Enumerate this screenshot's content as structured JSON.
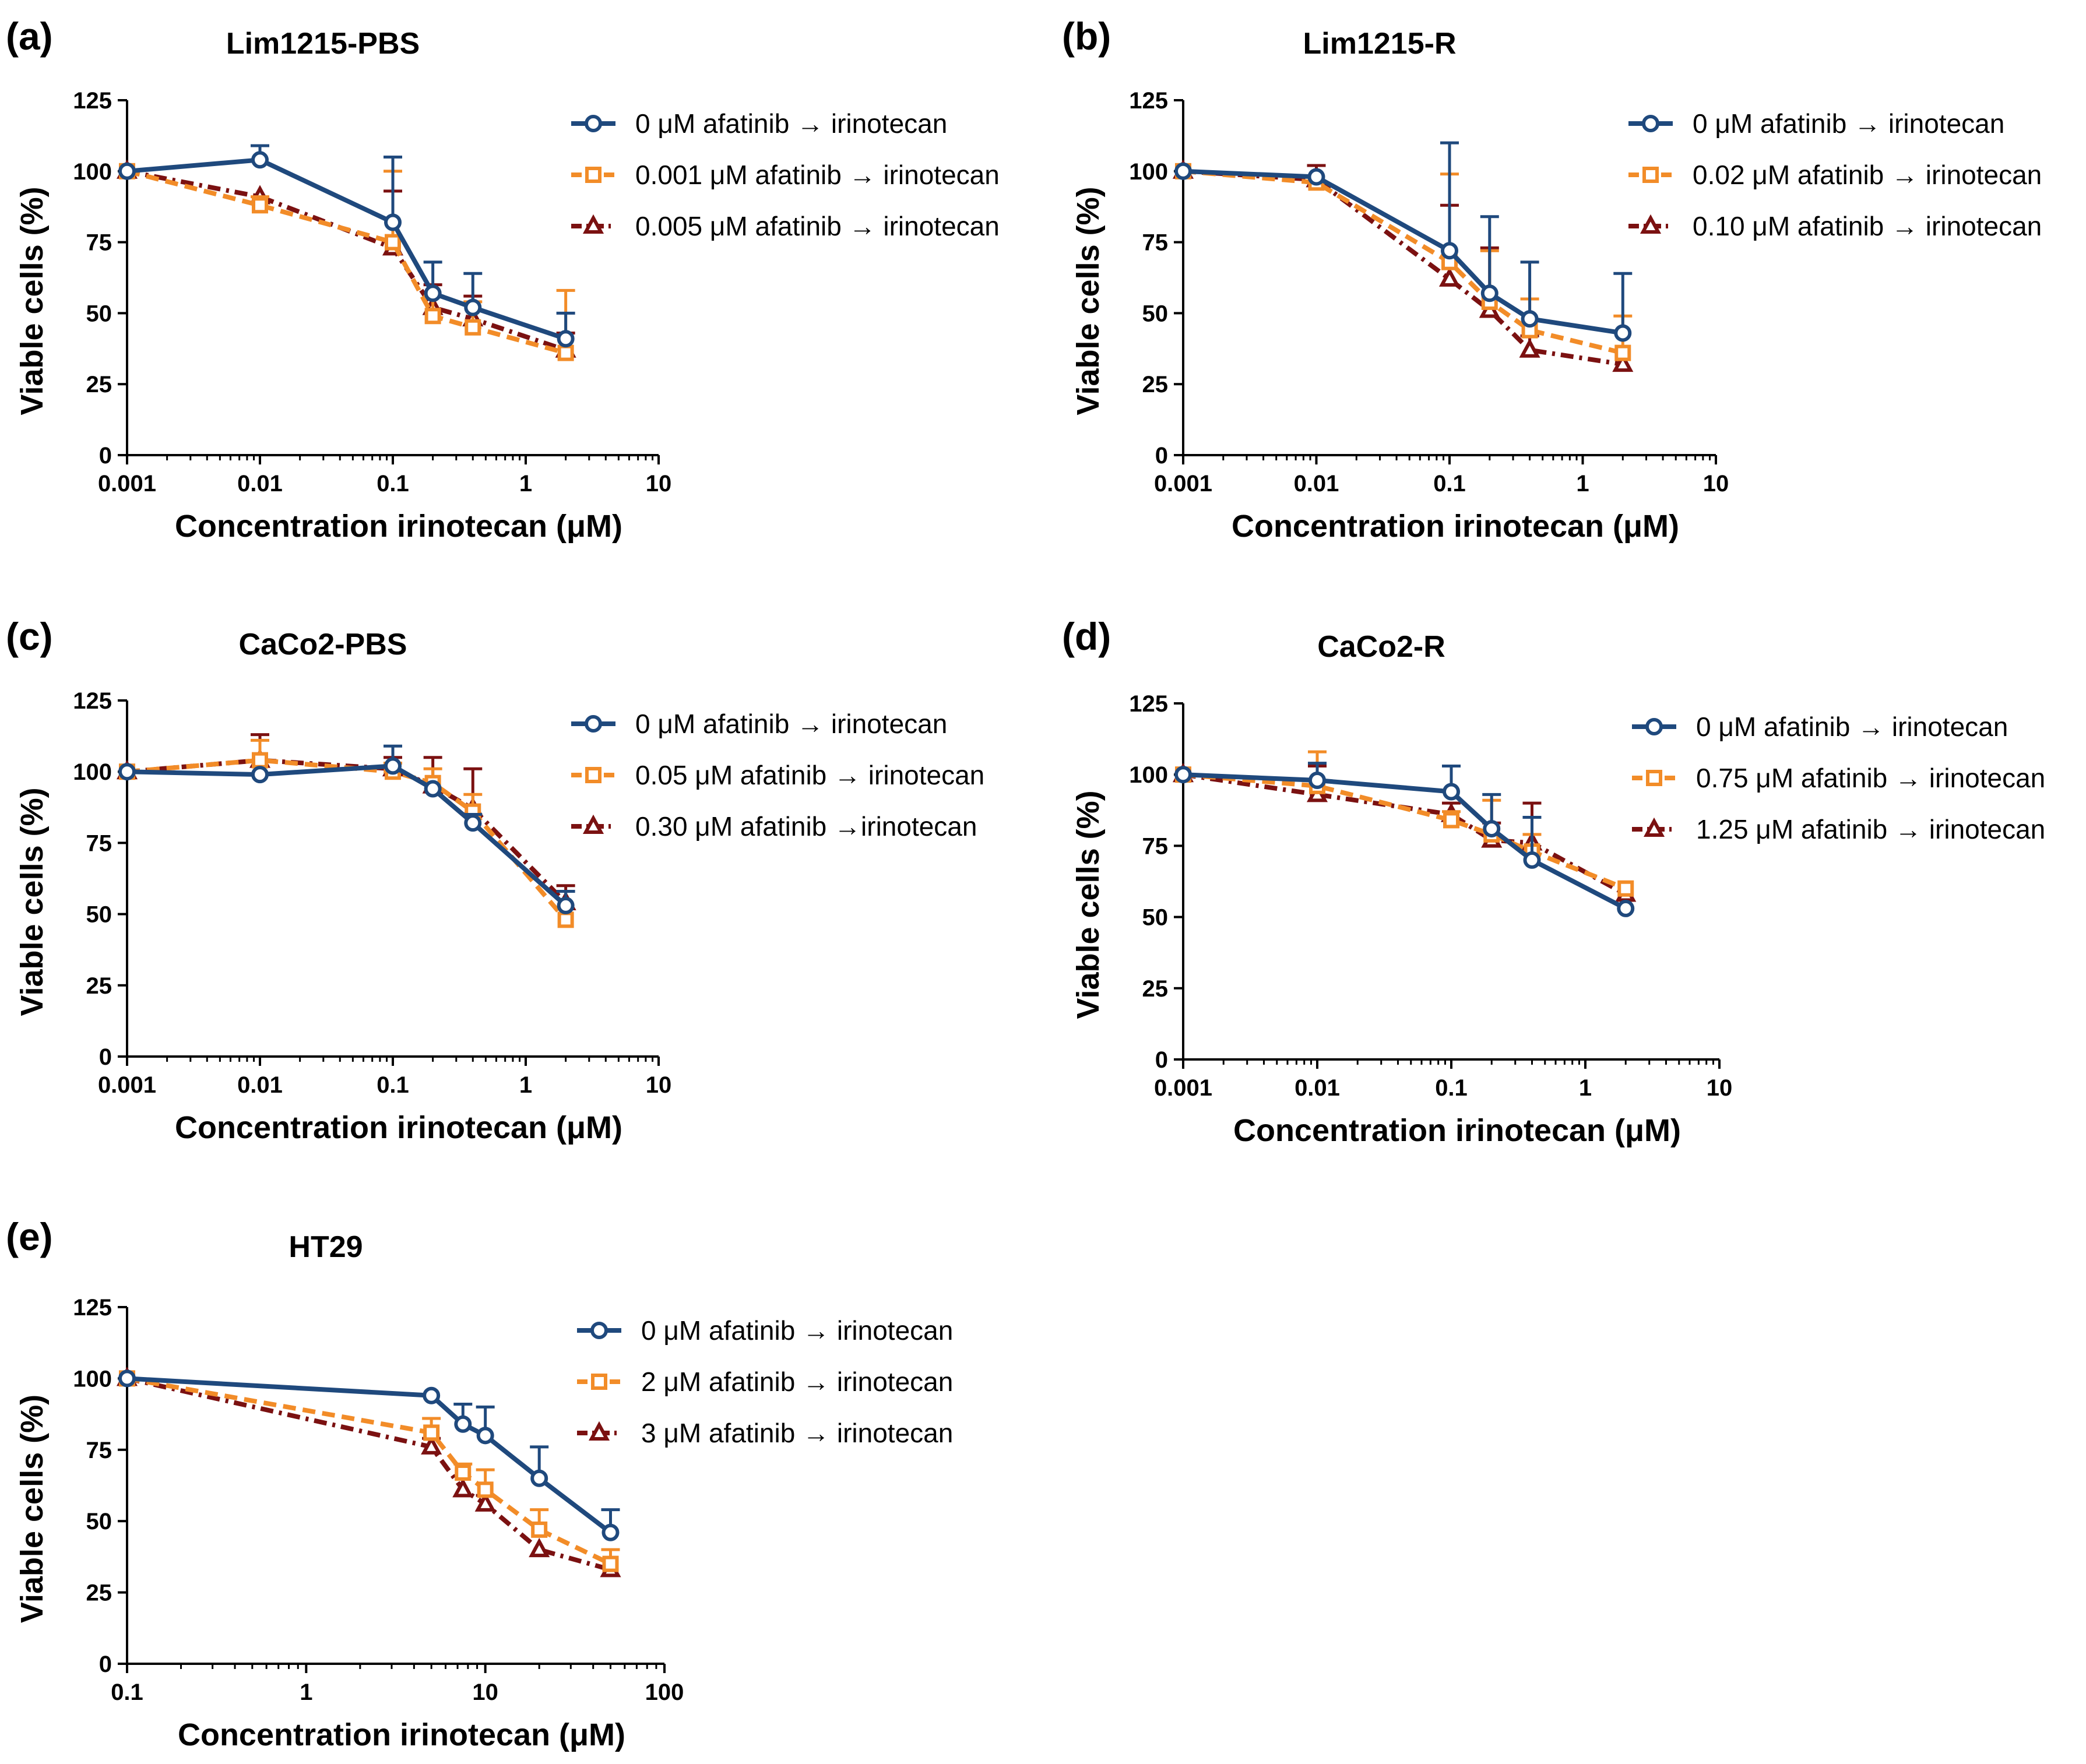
{
  "figure": {
    "background": "#ffffff"
  },
  "series_styles": [
    {
      "color": "#1f497d",
      "marker": "circle",
      "dash": "solid"
    },
    {
      "color": "#f28c28",
      "marker": "square",
      "dash": "dashed"
    },
    {
      "color": "#7b1111",
      "marker": "triangle",
      "dash": "dashdot"
    }
  ],
  "chart_data": [
    {
      "type": "line",
      "panel_label": "(a)",
      "title": "Lim1215-PBS",
      "xlabel": "Concentration irinotecan (μM)",
      "ylabel": "Viable cells (%)",
      "xscale": "log",
      "xlim": [
        0.001,
        10
      ],
      "ylim": [
        0,
        125
      ],
      "xticks": [
        0.001,
        0.01,
        0.1,
        1,
        10
      ],
      "xtick_labels": [
        "0.001",
        "0.01",
        "0.1",
        "1",
        "10"
      ],
      "yticks": [
        0,
        25,
        50,
        75,
        100,
        125
      ],
      "ytick_labels": [
        "0",
        "25",
        "50",
        "75",
        "100",
        "125"
      ],
      "legend_position": "top-right",
      "x": [
        0.001,
        0.01,
        0.1,
        0.2,
        0.4,
        2
      ],
      "series": [
        {
          "name": "0 μM afatinib → irinotecan",
          "values": [
            100,
            104,
            82,
            57,
            52,
            41
          ],
          "errors": [
            1,
            5,
            23,
            11,
            12,
            9
          ]
        },
        {
          "name": "0.001 μM afatinib → irinotecan",
          "values": [
            100,
            88,
            75,
            49,
            45,
            36
          ],
          "errors": [
            1,
            3,
            25,
            7,
            9,
            22
          ]
        },
        {
          "name": "0.005 μM afatinib → irinotecan",
          "values": [
            100,
            91,
            73,
            52,
            48,
            37
          ],
          "errors": [
            1,
            2,
            20,
            8,
            8,
            6
          ]
        }
      ]
    },
    {
      "type": "line",
      "panel_label": "(b)",
      "title": "Lim1215-R",
      "xlabel": "Concentration irinotecan (μM)",
      "ylabel": "Viable cells (%)",
      "xscale": "log",
      "xlim": [
        0.001,
        10
      ],
      "ylim": [
        0,
        125
      ],
      "xticks": [
        0.001,
        0.01,
        0.1,
        1,
        10
      ],
      "xtick_labels": [
        "0.001",
        "0.01",
        "0.1",
        "1",
        "10"
      ],
      "yticks": [
        0,
        25,
        50,
        75,
        100,
        125
      ],
      "ytick_labels": [
        "0",
        "25",
        "50",
        "75",
        "100",
        "125"
      ],
      "legend_position": "top-right",
      "x": [
        0.001,
        0.01,
        0.1,
        0.2,
        0.4,
        2
      ],
      "series": [
        {
          "name": "0 μM afatinib → irinotecan",
          "values": [
            100,
            98,
            72,
            57,
            48,
            43
          ],
          "errors": [
            1,
            2,
            38,
            27,
            20,
            21
          ]
        },
        {
          "name": "0.02 μM afatinib → irinotecan",
          "values": [
            100,
            96,
            68,
            54,
            44,
            36
          ],
          "errors": [
            1,
            2,
            31,
            18,
            11,
            13
          ]
        },
        {
          "name": "0.10 μM afatinib → irinotecan",
          "values": [
            100,
            97,
            62,
            51,
            37,
            32
          ],
          "errors": [
            1,
            5,
            26,
            22,
            5,
            2
          ]
        }
      ]
    },
    {
      "type": "line",
      "panel_label": "(c)",
      "title": "CaCo2-PBS",
      "xlabel": "Concentration irinotecan (μM)",
      "ylabel": "Viable cells (%)",
      "xscale": "log",
      "xlim": [
        0.001,
        10
      ],
      "ylim": [
        0,
        125
      ],
      "xticks": [
        0.001,
        0.01,
        0.1,
        1,
        10
      ],
      "xtick_labels": [
        "0.001",
        "0.01",
        "0.1",
        "1",
        "10"
      ],
      "yticks": [
        0,
        25,
        50,
        75,
        100,
        125
      ],
      "ytick_labels": [
        "0",
        "25",
        "50",
        "75",
        "100",
        "125"
      ],
      "legend_position": "top-right",
      "x": [
        0.001,
        0.01,
        0.1,
        0.2,
        0.4,
        2
      ],
      "series": [
        {
          "name": "0 μM afatinib → irinotecan",
          "values": [
            100,
            99,
            102,
            94,
            82,
            53
          ],
          "errors": [
            1,
            1,
            7,
            2,
            3,
            5
          ]
        },
        {
          "name": "0.05 μM afatinib → irinotecan",
          "values": [
            100,
            104,
            100,
            96,
            86,
            48
          ],
          "errors": [
            1,
            7,
            3,
            5,
            6,
            2
          ]
        },
        {
          "name": "0.30 μM afatinib →​irinotecan",
          "values": [
            100,
            104,
            101,
            95,
            87,
            54
          ],
          "errors": [
            1,
            9,
            4,
            10,
            14,
            6
          ]
        }
      ]
    },
    {
      "type": "line",
      "panel_label": "(d)",
      "title": "CaCo2-R",
      "xlabel": "Concentration irinotecan (μM)",
      "ylabel": "Viable cells (%)",
      "xscale": "log",
      "xlim": [
        0.001,
        10
      ],
      "ylim": [
        0,
        125
      ],
      "xticks": [
        0.001,
        0.01,
        0.1,
        1,
        10
      ],
      "xtick_labels": [
        "0.001",
        "0.01",
        "0.1",
        "1",
        "10"
      ],
      "yticks": [
        0,
        25,
        50,
        75,
        100,
        125
      ],
      "ytick_labels": [
        "0",
        "25",
        "50",
        "75",
        "100",
        "125"
      ],
      "legend_position": "top-right",
      "x": [
        0.001,
        0.01,
        0.1,
        0.2,
        0.4,
        2
      ],
      "series": [
        {
          "name": "0 μM afatinib → irinotecan",
          "values": [
            100,
            98,
            94,
            81,
            70,
            53
          ],
          "errors": [
            1,
            6,
            9,
            12,
            15,
            2
          ]
        },
        {
          "name": "0.75 μM afatinib → irinotecan",
          "values": [
            100,
            96,
            84,
            79,
            73,
            60
          ],
          "errors": [
            1,
            12,
            3,
            12,
            6,
            2
          ]
        },
        {
          "name": "1.25 μM afatinib → irinotecan",
          "values": [
            100,
            93,
            86,
            77,
            76,
            58
          ],
          "errors": [
            1,
            10,
            4,
            6,
            14,
            2
          ]
        }
      ]
    },
    {
      "type": "line",
      "panel_label": "(e)",
      "title": "HT29",
      "xlabel": "Concentration irinotecan (μM)",
      "ylabel": "Viable cells (%)",
      "xscale": "log",
      "xlim": [
        0.1,
        100
      ],
      "ylim": [
        0,
        125
      ],
      "xticks": [
        0.1,
        1,
        10,
        100
      ],
      "xtick_labels": [
        "0.1",
        "1",
        "10",
        "100"
      ],
      "yticks": [
        0,
        25,
        50,
        75,
        100,
        125
      ],
      "ytick_labels": [
        "0",
        "25",
        "50",
        "75",
        "100",
        "125"
      ],
      "legend_position": "top-right",
      "x": [
        0.1,
        5,
        7.5,
        10,
        20,
        50
      ],
      "series": [
        {
          "name": "0 μM afatinib → irinotecan",
          "values": [
            100,
            94,
            84,
            80,
            65,
            46
          ],
          "errors": [
            1,
            1,
            7,
            10,
            11,
            8
          ]
        },
        {
          "name": "2 μM afatinib → irinotecan",
          "values": [
            100,
            81,
            67,
            61,
            47,
            35
          ],
          "errors": [
            1,
            5,
            3,
            7,
            7,
            5
          ]
        },
        {
          "name": "3 μM afatinib → irinotecan",
          "values": [
            100,
            76,
            61,
            56,
            40,
            33
          ],
          "errors": [
            1,
            3,
            2,
            3,
            2,
            2
          ]
        }
      ]
    }
  ]
}
